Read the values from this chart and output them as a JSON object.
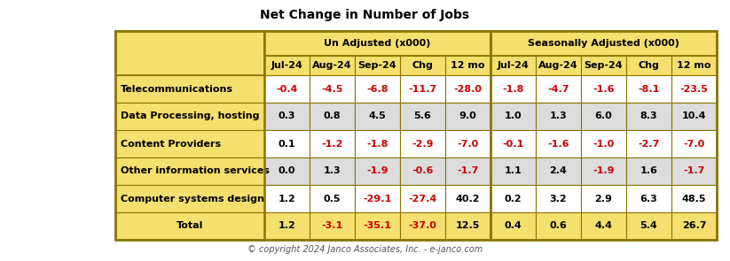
{
  "title": "Net Change in Number of Jobs",
  "copyright": "© copyright 2024 Janco Associates, Inc. - e-janco.com",
  "col_groups": [
    {
      "label": "Un Adjusted (x000)",
      "span": 5
    },
    {
      "label": "Seasonally Adjusted (x000)",
      "span": 5
    }
  ],
  "sub_headers": [
    "Jul-24",
    "Aug-24",
    "Sep-24",
    "Chg",
    "12 mo",
    "Jul-24",
    "Aug-24",
    "Sep-24",
    "Chg",
    "12 mo"
  ],
  "row_labels": [
    "Telecommunications",
    "Data Processing, hosting",
    "Content Providers",
    "Other information services",
    "Computer systems design",
    "Total"
  ],
  "data": [
    [
      "-0.4",
      "-4.5",
      "-6.8",
      "-11.7",
      "-28.0",
      "-1.8",
      "-4.7",
      "-1.6",
      "-8.1",
      "-23.5"
    ],
    [
      "0.3",
      "0.8",
      "4.5",
      "5.6",
      "9.0",
      "1.0",
      "1.3",
      "6.0",
      "8.3",
      "10.4"
    ],
    [
      "0.1",
      "-1.2",
      "-1.8",
      "-2.9",
      "-7.0",
      "-0.1",
      "-1.6",
      "-1.0",
      "-2.7",
      "-7.0"
    ],
    [
      "0.0",
      "1.3",
      "-1.9",
      "-0.6",
      "-1.7",
      "1.1",
      "2.4",
      "-1.9",
      "1.6",
      "-1.7"
    ],
    [
      "1.2",
      "0.5",
      "-29.1",
      "-27.4",
      "40.2",
      "0.2",
      "3.2",
      "2.9",
      "6.3",
      "48.5"
    ],
    [
      "1.2",
      "-3.1",
      "-35.1",
      "-37.0",
      "12.5",
      "0.4",
      "0.6",
      "4.4",
      "5.4",
      "26.7"
    ]
  ],
  "header_bg": "#F5DF6E",
  "row_even_bg": "#FFFFFF",
  "row_odd_bg": "#DCDCDC",
  "total_row_bg": "#F5DF6E",
  "label_col_bg": "#F5DF6E",
  "negative_color": "#CC0000",
  "positive_color": "#000000",
  "border_color": "#8B7500",
  "fig_bg": "#FFFFFF",
  "title_fontsize": 10,
  "header_fontsize": 8,
  "data_fontsize": 8,
  "label_fontsize": 8,
  "copyright_fontsize": 7
}
